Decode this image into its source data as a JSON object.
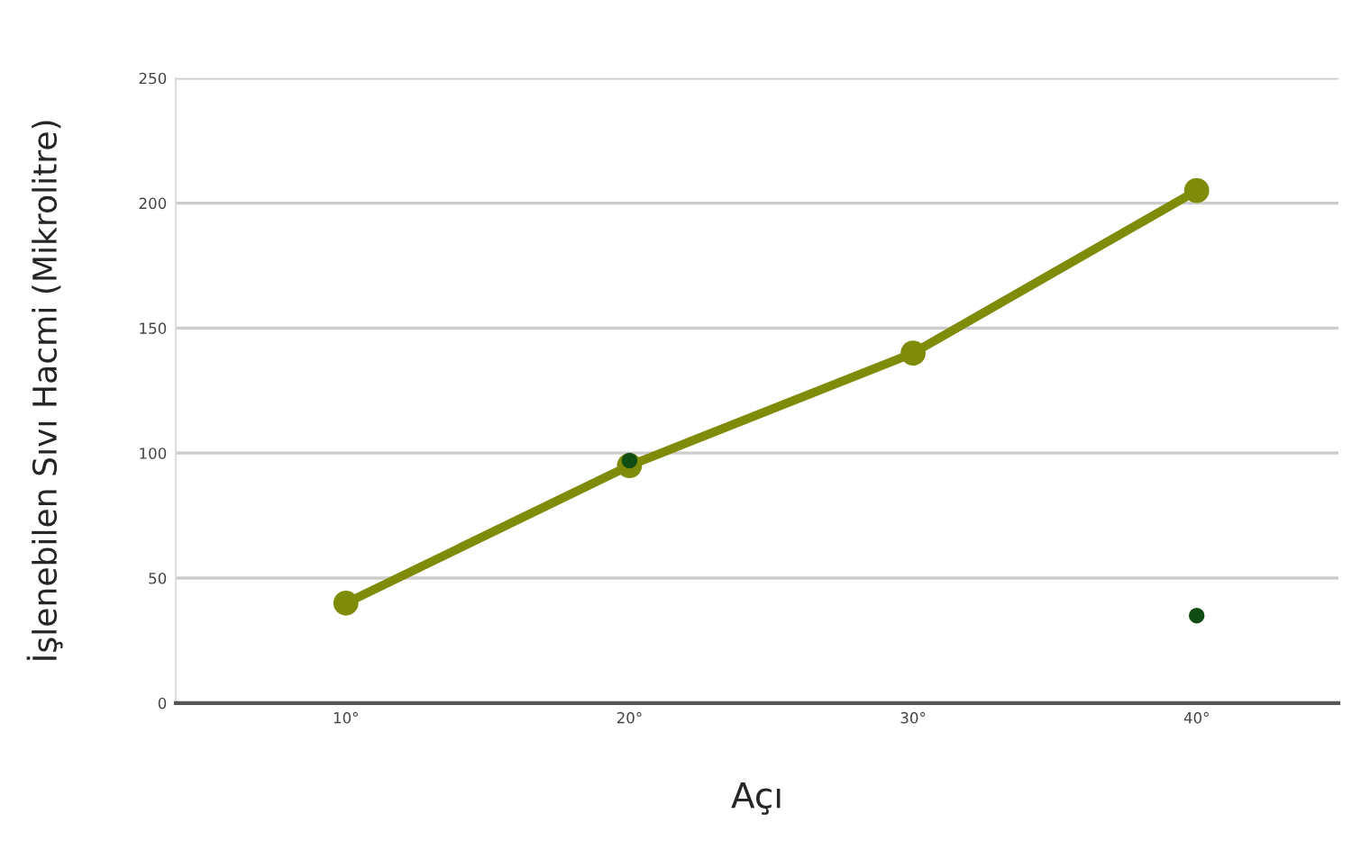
{
  "chart_data": {
    "type": "line",
    "xlabel": "Açı",
    "ylabel": "İşlenebilen Sıvı Hacmi (Mikrolitre)",
    "categories": [
      "10°",
      "20°",
      "30°",
      "40°"
    ],
    "series": [
      {
        "color": "#7f8c0a",
        "values": [
          40,
          95,
          140,
          205
        ],
        "marker": "circle"
      },
      {
        "type": "scatter",
        "color": "#0f4d12",
        "values": [
          null,
          97,
          null,
          35
        ],
        "marker": "circle"
      }
    ],
    "ylim": [
      0,
      250
    ],
    "yticks": [
      0,
      50,
      100,
      150,
      200,
      250
    ],
    "grid": "y",
    "legend": false
  }
}
